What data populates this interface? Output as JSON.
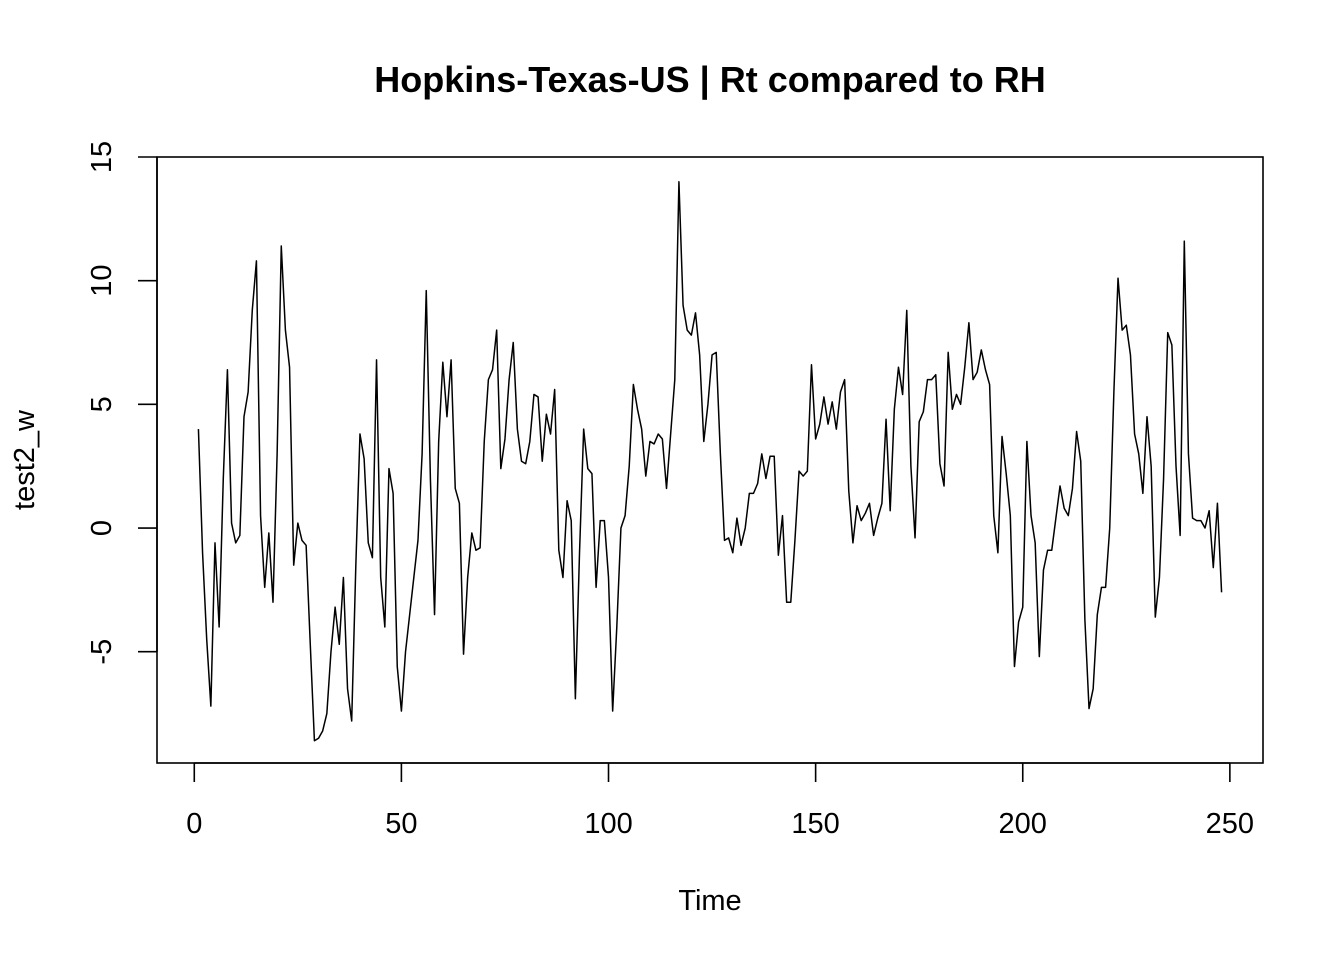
{
  "chart_data": {
    "type": "line",
    "title": "Hopkins-Texas-US | Rt compared to RH",
    "xlabel": "Time",
    "ylabel": "test2_w",
    "xlim": [
      -9,
      258
    ],
    "ylim": [
      -9.5,
      15
    ],
    "xticks": [
      0,
      50,
      100,
      150,
      200,
      250
    ],
    "yticks": [
      -5,
      0,
      5,
      10,
      15
    ],
    "xtick_labels": [
      "0",
      "50",
      "100",
      "150",
      "200",
      "250"
    ],
    "ytick_labels": [
      "-5",
      "0",
      "5",
      "10",
      "15"
    ],
    "grid": false,
    "legend": "none",
    "line_color": "#000000",
    "series": [
      {
        "x_start": 1,
        "x_step": 1,
        "values": [
          4.0,
          -1.0,
          -4.5,
          -7.2,
          -0.6,
          -4.0,
          2.0,
          6.4,
          0.2,
          -0.6,
          -0.3,
          4.5,
          5.5,
          8.8,
          10.8,
          0.5,
          -2.4,
          -0.2,
          -3.0,
          3.0,
          11.4,
          8.0,
          6.5,
          -1.5,
          0.2,
          -0.5,
          -0.7,
          -4.7,
          -8.6,
          -8.5,
          -8.2,
          -7.5,
          -5.0,
          -3.2,
          -4.7,
          -2.0,
          -6.5,
          -7.8,
          -1.5,
          3.8,
          2.8,
          -0.6,
          -1.2,
          6.8,
          -2.0,
          -4.0,
          2.4,
          1.4,
          -5.6,
          -7.4,
          -5.0,
          -3.5,
          -2.0,
          -0.5,
          3.0,
          9.6,
          2.0,
          -3.5,
          3.5,
          6.7,
          4.5,
          6.8,
          1.6,
          1.0,
          -5.1,
          -2.0,
          -0.2,
          -0.9,
          -0.8,
          3.5,
          6.0,
          6.4,
          8.0,
          2.4,
          3.6,
          6.0,
          7.5,
          4.0,
          2.7,
          2.6,
          3.5,
          5.4,
          5.3,
          2.7,
          4.6,
          3.8,
          5.6,
          -0.9,
          -2.0,
          1.1,
          0.3,
          -6.9,
          -1.0,
          4.0,
          2.4,
          2.2,
          -2.4,
          0.3,
          0.3,
          -2.0,
          -7.4,
          -4.0,
          0.0,
          0.5,
          2.5,
          5.8,
          4.8,
          4.0,
          2.1,
          3.5,
          3.4,
          3.8,
          3.6,
          1.6,
          3.8,
          6.0,
          14.0,
          9.0,
          8.0,
          7.8,
          8.7,
          7.0,
          3.5,
          5.0,
          7.0,
          7.1,
          3.0,
          -0.5,
          -0.4,
          -1.0,
          0.4,
          -0.7,
          0.0,
          1.4,
          1.4,
          1.8,
          3.0,
          2.0,
          2.9,
          2.9,
          -1.1,
          0.5,
          -3.0,
          -3.0,
          -0.5,
          2.3,
          2.1,
          2.3,
          6.6,
          3.6,
          4.2,
          5.3,
          4.2,
          5.1,
          4.0,
          5.5,
          6.0,
          1.5,
          -0.6,
          0.9,
          0.3,
          0.6,
          1.0,
          -0.3,
          0.4,
          1.0,
          4.4,
          0.7,
          4.8,
          6.5,
          5.4,
          8.8,
          2.5,
          -0.4,
          4.3,
          4.7,
          6.0,
          6.0,
          6.2,
          2.6,
          1.7,
          7.1,
          4.8,
          5.4,
          5.0,
          6.5,
          8.3,
          6.0,
          6.3,
          7.2,
          6.4,
          5.8,
          0.5,
          -1.0,
          3.7,
          2.2,
          0.5,
          -5.6,
          -3.8,
          -3.2,
          3.5,
          0.5,
          -0.6,
          -5.2,
          -1.7,
          -0.9,
          -0.9,
          0.4,
          1.7,
          0.8,
          0.5,
          1.6,
          3.9,
          2.7,
          -3.7,
          -7.3,
          -6.5,
          -3.5,
          -2.4,
          -2.4,
          0.0,
          5.5,
          10.1,
          8.0,
          8.2,
          7.0,
          3.8,
          3.0,
          1.4,
          4.5,
          2.5,
          -3.6,
          -2.0,
          2.0,
          7.9,
          7.4,
          2.5,
          -0.3,
          11.6,
          3.0,
          0.4,
          0.3,
          0.3,
          0.0,
          0.7,
          -1.6,
          1.0,
          -2.6
        ]
      }
    ]
  }
}
